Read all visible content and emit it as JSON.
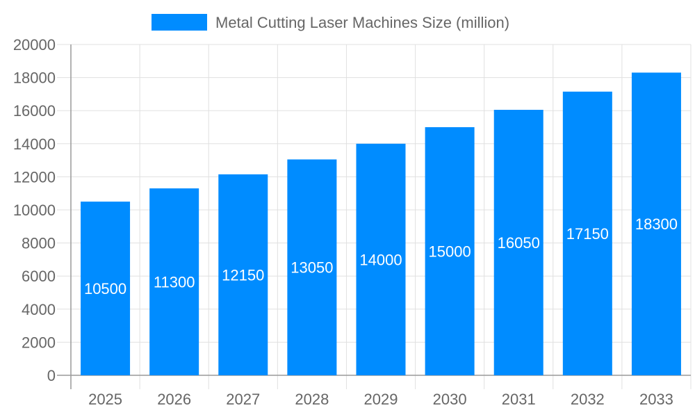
{
  "chart_data": {
    "type": "bar",
    "categories": [
      "2025",
      "2026",
      "2027",
      "2028",
      "2029",
      "2030",
      "2031",
      "2032",
      "2033"
    ],
    "series": [
      {
        "name": "Metal Cutting Laser Machines Size (million)",
        "values": [
          10500,
          11300,
          12150,
          13050,
          14000,
          15000,
          16050,
          17150,
          18300
        ]
      }
    ],
    "ylim": [
      0,
      20000
    ],
    "yticks": [
      0,
      2000,
      4000,
      6000,
      8000,
      10000,
      12000,
      14000,
      16000,
      18000,
      20000
    ],
    "grid": true,
    "legend_position": "top",
    "data_labels": true,
    "colors": {
      "bar": "#008cff",
      "grid": "#e0e0e0",
      "axis": "#999999",
      "text": "#666666"
    }
  }
}
